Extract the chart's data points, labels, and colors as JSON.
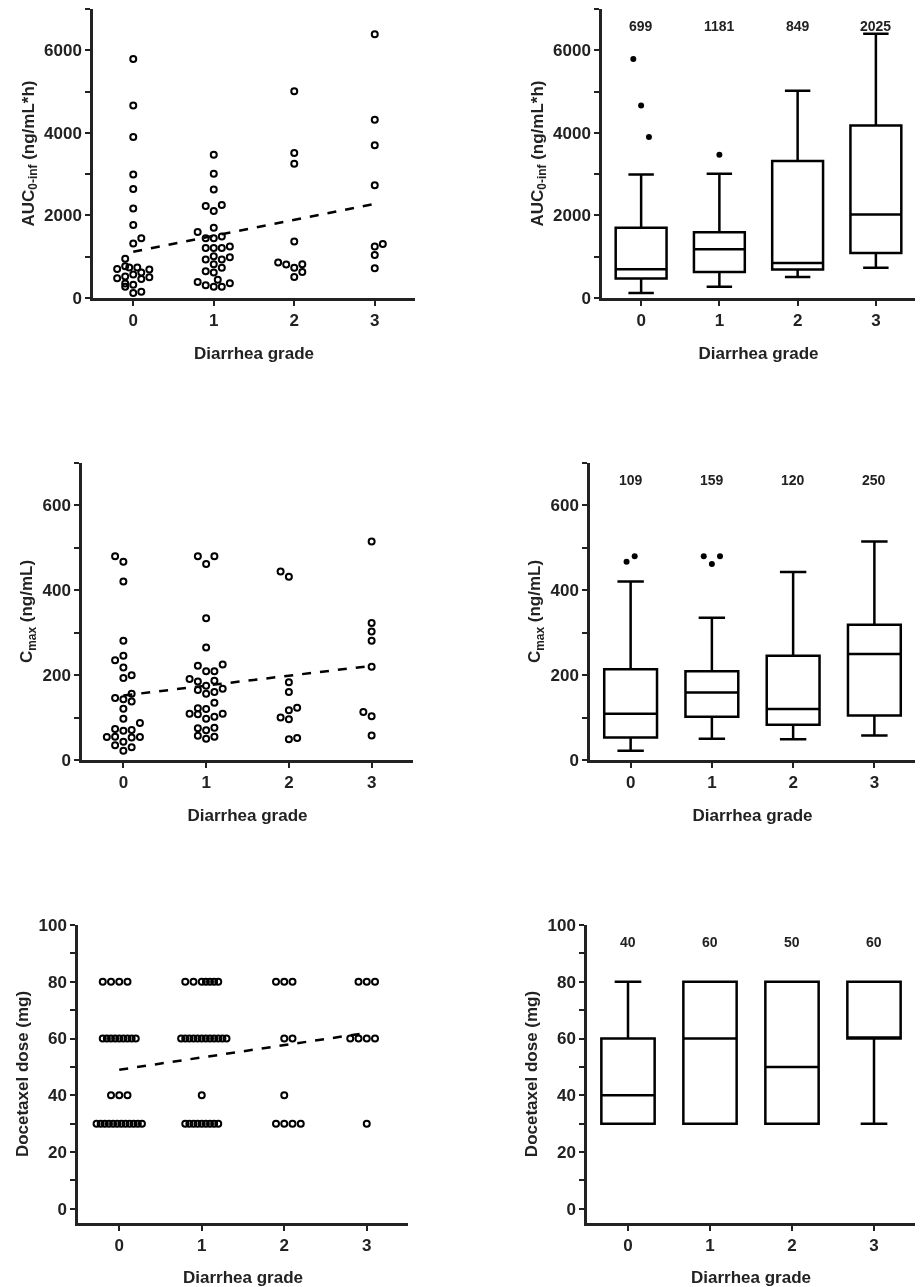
{
  "chart_data": [
    {
      "type": "scatter",
      "xlabel": "Diarrhea grade",
      "ylabel": "AUC$_{0-inf}$ (ng/mL*h)",
      "xlim": [
        -0.5,
        3.5
      ],
      "xticks": [
        0,
        1,
        2,
        3
      ],
      "ylim": [
        0,
        7000
      ],
      "yticks": [
        0,
        {
          "value": 1000,
          "label": null
        },
        2000,
        {
          "value": 3000,
          "label": null
        },
        4000,
        {
          "value": 5000,
          "label": null
        },
        6000,
        {
          "value": 7000,
          "label": null
        }
      ],
      "series": [
        {
          "color": "#000000",
          "marker": "circle",
          "x": [
            0,
            0,
            0,
            0,
            0,
            0,
            0,
            0,
            0.1,
            -0.1,
            -0.2,
            -0.1,
            -0.05,
            0.05,
            0.1,
            0.2,
            -0.2,
            -0.1,
            0,
            0.1,
            0.2,
            -0.1,
            0,
            -0.1,
            0.1,
            0,
            1,
            1,
            1,
            0.9,
            1,
            1.1,
            1,
            0.8,
            0.9,
            1,
            1.1,
            0.9,
            1,
            1.1,
            1.2,
            1,
            0.9,
            1.1,
            1.2,
            1,
            1.1,
            0.9,
            1,
            0.8,
            0.9,
            1,
            1.1,
            1.2,
            1.05,
            2,
            2,
            2,
            2,
            1.8,
            1.9,
            2,
            2.1,
            2.1,
            2,
            3,
            3,
            3,
            3,
            3.1,
            3,
            3,
            3
          ],
          "values": [
            5790,
            4660,
            3900,
            2990,
            2640,
            2170,
            1770,
            1320,
            1450,
            950,
            700,
            770,
            740,
            740,
            620,
            690,
            480,
            520,
            570,
            460,
            500,
            350,
            320,
            270,
            150,
            120,
            3470,
            3010,
            2630,
            2230,
            2110,
            2250,
            1700,
            1600,
            1450,
            1450,
            1490,
            1210,
            1210,
            1210,
            1250,
            1010,
            930,
            930,
            990,
            820,
            730,
            650,
            620,
            390,
            310,
            270,
            270,
            360,
            440,
            5010,
            3510,
            3250,
            1370,
            860,
            810,
            730,
            820,
            630,
            510,
            6390,
            4320,
            3700,
            2730,
            1310,
            1250,
            1040,
            720
          ]
        },
        {
          "type": "line",
          "color": "#000000",
          "line_style": "dashed",
          "x": [
            0,
            3
          ],
          "values": [
            1120,
            2280
          ]
        }
      ]
    },
    {
      "type": "box",
      "xlabel": "Diarrhea grade",
      "ylabel": "AUC$_{0-inf}$ (ng/mL*h)",
      "categories": [
        "0",
        "1",
        "2",
        "3"
      ],
      "ylim": [
        0,
        7000
      ],
      "yticks": [
        0,
        {
          "value": 1000,
          "label": null
        },
        2000,
        {
          "value": 3000,
          "label": null
        },
        4000,
        {
          "value": 5000,
          "label": null
        },
        6000,
        {
          "value": 7000,
          "label": null
        }
      ],
      "color": "#000000",
      "boxes": [
        {
          "low": 120,
          "q1": 470,
          "median": 699,
          "q3": 1700,
          "high": 2990,
          "outliers": [
            5790,
            4660,
            3900
          ]
        },
        {
          "low": 270,
          "q1": 630,
          "median": 1181,
          "q3": 1590,
          "high": 3010,
          "outliers": [
            3470
          ]
        },
        {
          "low": 510,
          "q1": 690,
          "median": 849,
          "q3": 3320,
          "high": 5020
        },
        {
          "low": 730,
          "q1": 1090,
          "median": 2025,
          "q3": 4180,
          "high": 6400
        }
      ],
      "annotations": [
        "699",
        "1181",
        "849",
        "2025"
      ]
    },
    {
      "type": "scatter",
      "xlabel": "Diarrhea grade",
      "ylabel": "C$_{max}$ (ng/mL)",
      "xlim": [
        -0.5,
        3.5
      ],
      "xticks": [
        0,
        1,
        2,
        3
      ],
      "ylim": [
        0,
        700
      ],
      "yticks": [
        0,
        {
          "value": 100,
          "label": null
        },
        200,
        {
          "value": 300,
          "label": null
        },
        400,
        {
          "value": 500,
          "label": null
        },
        600,
        {
          "value": 700,
          "label": null
        }
      ],
      "series": [
        {
          "color": "#000000",
          "marker": "circle",
          "x": [
            -0.1,
            0,
            0,
            0,
            0,
            -0.1,
            0,
            0,
            0.1,
            0.1,
            -0.1,
            0,
            0.1,
            0,
            0,
            0.2,
            -0.1,
            0,
            0.1,
            -0.2,
            -0.1,
            0,
            0.1,
            0.2,
            -0.1,
            0.1,
            0,
            0.9,
            1,
            1.1,
            1,
            1,
            0.9,
            1,
            1.1,
            1.2,
            0.8,
            0.9,
            1,
            1.1,
            0.9,
            1,
            1.1,
            1.2,
            1.1,
            0.9,
            1,
            0.8,
            0.9,
            1,
            1.1,
            1.2,
            0.9,
            1,
            1.1,
            0.9,
            1,
            1.1,
            1.9,
            2,
            2,
            2,
            1.9,
            2,
            2,
            2.1,
            2,
            2.1,
            3,
            3,
            3,
            3,
            3,
            2.9,
            3,
            3
          ],
          "values": [
            480,
            467,
            421,
            281,
            246,
            235,
            218,
            193,
            200,
            156,
            146,
            143,
            138,
            121,
            97,
            87,
            73,
            69,
            71,
            54,
            55,
            43,
            53,
            54,
            35,
            30,
            22,
            480,
            462,
            480,
            334,
            265,
            222,
            209,
            209,
            225,
            191,
            185,
            175,
            187,
            165,
            156,
            160,
            168,
            135,
            122,
            120,
            109,
            108,
            97,
            102,
            109,
            75,
            70,
            76,
            57,
            50,
            55,
            444,
            432,
            183,
            160,
            100,
            96,
            117,
            123,
            49,
            52,
            515,
            323,
            303,
            281,
            220,
            113,
            103,
            58
          ]
        },
        {
          "type": "line",
          "color": "#000000",
          "line_style": "dashed",
          "x": [
            0,
            3
          ],
          "values": [
            152,
            222
          ]
        }
      ]
    },
    {
      "type": "box",
      "xlabel": "Diarrhea grade",
      "ylabel": "C$_{max}$ (ng/mL)",
      "categories": [
        "0",
        "1",
        "2",
        "3"
      ],
      "ylim": [
        0,
        700
      ],
      "yticks": [
        0,
        {
          "value": 100,
          "label": null
        },
        200,
        {
          "value": 300,
          "label": null
        },
        400,
        {
          "value": 500,
          "label": null
        },
        600,
        {
          "value": 700,
          "label": null
        }
      ],
      "color": "#000000",
      "boxes": [
        {
          "low": 22,
          "q1": 53,
          "median": 109,
          "q3": 214,
          "high": 421,
          "outliers": [
            467,
            480
          ]
        },
        {
          "low": 50,
          "q1": 102,
          "median": 159,
          "q3": 209,
          "high": 335,
          "outliers": [
            480,
            462,
            480
          ]
        },
        {
          "low": 49,
          "q1": 83,
          "median": 120,
          "q3": 246,
          "high": 443
        },
        {
          "low": 58,
          "q1": 105,
          "median": 250,
          "q3": 319,
          "high": 515
        }
      ],
      "annotations": [
        "109",
        "159",
        "120",
        "250"
      ]
    },
    {
      "type": "scatter",
      "xlabel": "Diarrhea grade",
      "ylabel": "Docetaxel dose (mg)",
      "xlim": [
        -0.5,
        3.5
      ],
      "xticks": [
        0,
        1,
        2,
        3
      ],
      "ylim": [
        -5,
        100
      ],
      "yticks": [
        0,
        {
          "value": 10,
          "label": null
        },
        20,
        {
          "value": 30,
          "label": null
        },
        40,
        {
          "value": 50,
          "label": null
        },
        60,
        {
          "value": 70,
          "label": null
        },
        80,
        {
          "value": 90,
          "label": null
        },
        100
      ],
      "series": [
        {
          "color": "#000000",
          "marker": "circle",
          "x": [
            -0.2,
            -0.1,
            0,
            0.1,
            -0.2,
            -0.15,
            -0.1,
            -0.05,
            0,
            0.05,
            0.1,
            0.15,
            0.2,
            -0.1,
            0,
            0.1,
            -0.275,
            -0.225,
            -0.175,
            -0.125,
            -0.075,
            -0.025,
            0.025,
            0.075,
            0.125,
            0.175,
            0.225,
            0.275,
            0.8,
            0.9,
            1,
            1.05,
            1.1,
            1.15,
            1.2,
            0.75,
            0.8,
            0.85,
            0.9,
            0.95,
            1,
            1.05,
            1.1,
            1.15,
            1.2,
            1.25,
            1.3,
            1,
            0.8,
            0.85,
            0.9,
            0.95,
            1,
            1.05,
            1.1,
            1.15,
            1.2,
            1.9,
            2,
            2.1,
            2,
            2.1,
            2,
            1.9,
            2,
            2.1,
            2.2,
            2.9,
            3,
            3.1,
            2.8,
            2.9,
            3,
            3.1,
            3
          ],
          "values": [
            80,
            80,
            80,
            80,
            60,
            60,
            60,
            60,
            60,
            60,
            60,
            60,
            60,
            40,
            40,
            40,
            30,
            30,
            30,
            30,
            30,
            30,
            30,
            30,
            30,
            30,
            30,
            30,
            80,
            80,
            80,
            80,
            80,
            80,
            80,
            60,
            60,
            60,
            60,
            60,
            60,
            60,
            60,
            60,
            60,
            60,
            60,
            40,
            30,
            30,
            30,
            30,
            30,
            30,
            30,
            30,
            30,
            80,
            80,
            80,
            60,
            60,
            40,
            30,
            30,
            30,
            30,
            80,
            80,
            80,
            60,
            60,
            60,
            60,
            30
          ]
        },
        {
          "type": "line",
          "color": "#000000",
          "line_style": "dashed",
          "x": [
            0,
            3
          ],
          "values": [
            49,
            62
          ]
        }
      ]
    },
    {
      "type": "box",
      "xlabel": "Diarrhea grade",
      "ylabel": "Docetaxel dose (mg)",
      "categories": [
        "0",
        "1",
        "2",
        "3"
      ],
      "ylim": [
        -5,
        100
      ],
      "yticks": [
        0,
        {
          "value": 10,
          "label": null
        },
        20,
        {
          "value": 30,
          "label": null
        },
        40,
        {
          "value": 50,
          "label": null
        },
        60,
        {
          "value": 70,
          "label": null
        },
        80,
        {
          "value": 90,
          "label": null
        },
        100
      ],
      "color": "#000000",
      "boxes": [
        {
          "low": 30,
          "q1": 30,
          "median": 40,
          "q3": 60,
          "high": 80
        },
        {
          "low": 30,
          "q1": 30,
          "median": 60,
          "q3": 80,
          "high": 80
        },
        {
          "low": 30,
          "q1": 30,
          "median": 50,
          "q3": 80,
          "high": 80
        },
        {
          "low": 30,
          "q1": 60,
          "median": 60,
          "q3": 80,
          "high": 80
        }
      ],
      "annotations": [
        "40",
        "60",
        "50",
        "60"
      ]
    }
  ]
}
